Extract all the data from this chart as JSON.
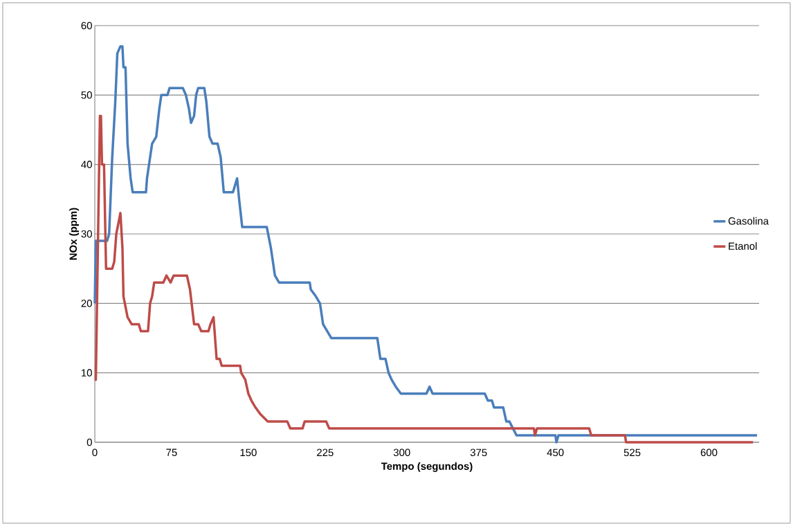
{
  "chart_data": {
    "type": "line",
    "xlabel": "Tempo (segundos)",
    "ylabel": "NOx (ppm)",
    "xlim": [
      0,
      649
    ],
    "ylim": [
      0,
      60
    ],
    "xticks": [
      0,
      75,
      150,
      225,
      300,
      375,
      450,
      525,
      600
    ],
    "yticks": [
      0,
      10,
      20,
      30,
      40,
      50,
      60
    ],
    "grid": "y",
    "legend": "right",
    "marker": "none",
    "line_style": "solid",
    "series": [
      {
        "name": "Gasolina",
        "color": "#4a7ebb",
        "x": [
          0,
          1,
          12,
          14,
          17,
          20,
          22,
          25,
          27,
          28,
          30,
          32,
          35,
          37,
          50,
          51,
          54,
          56,
          60,
          63,
          65,
          71,
          73,
          86,
          89,
          92,
          94,
          97,
          99,
          101,
          107,
          109,
          112,
          115,
          120,
          123,
          126,
          135,
          139,
          141,
          144,
          168,
          172,
          176,
          180,
          210,
          211,
          216,
          220,
          223,
          227,
          231,
          276,
          279,
          284,
          287,
          290,
          294,
          299,
          324,
          327,
          330,
          381,
          384,
          388,
          390,
          399,
          402,
          405,
          412,
          450,
          451,
          453,
          647
        ],
        "values": [
          20,
          29,
          29,
          30,
          41,
          49,
          56,
          57,
          57,
          54,
          54,
          43,
          38,
          36,
          36,
          38,
          41,
          43,
          44,
          48,
          50,
          50,
          51,
          51,
          50,
          48,
          46,
          47,
          50,
          51,
          51,
          49,
          44,
          43,
          43,
          41,
          36,
          36,
          38,
          35,
          31,
          31,
          28,
          24,
          23,
          23,
          22,
          21,
          20,
          17,
          16,
          15,
          15,
          12,
          12,
          10,
          9,
          8,
          7,
          7,
          8,
          7,
          7,
          6,
          6,
          5,
          5,
          3,
          3,
          1,
          1,
          0,
          1,
          1
        ]
      },
      {
        "name": "Etanol",
        "color": "#be4b48",
        "x": [
          0,
          1,
          5,
          6,
          7,
          9,
          11,
          17,
          19,
          21,
          25,
          27,
          28,
          32,
          36,
          43,
          45,
          52,
          54,
          56,
          58,
          67,
          70,
          74,
          77,
          90,
          93,
          97,
          101,
          104,
          111,
          113,
          116,
          119,
          122,
          124,
          142,
          143,
          147,
          150,
          153,
          157,
          162,
          169,
          188,
          191,
          203,
          205,
          226,
          229,
          429,
          430,
          432,
          483,
          485,
          518,
          519,
          643
        ],
        "values": [
          9,
          9,
          47,
          47,
          40,
          40,
          25,
          25,
          26,
          30,
          33,
          28,
          21,
          18,
          17,
          17,
          16,
          16,
          20,
          21,
          23,
          23,
          24,
          23,
          24,
          24,
          22,
          17,
          17,
          16,
          16,
          17,
          18,
          12,
          12,
          11,
          11,
          10,
          9,
          7,
          6,
          5,
          4,
          3,
          3,
          2,
          2,
          3,
          3,
          2,
          2,
          1,
          2,
          2,
          1,
          1,
          0,
          0
        ]
      }
    ]
  }
}
